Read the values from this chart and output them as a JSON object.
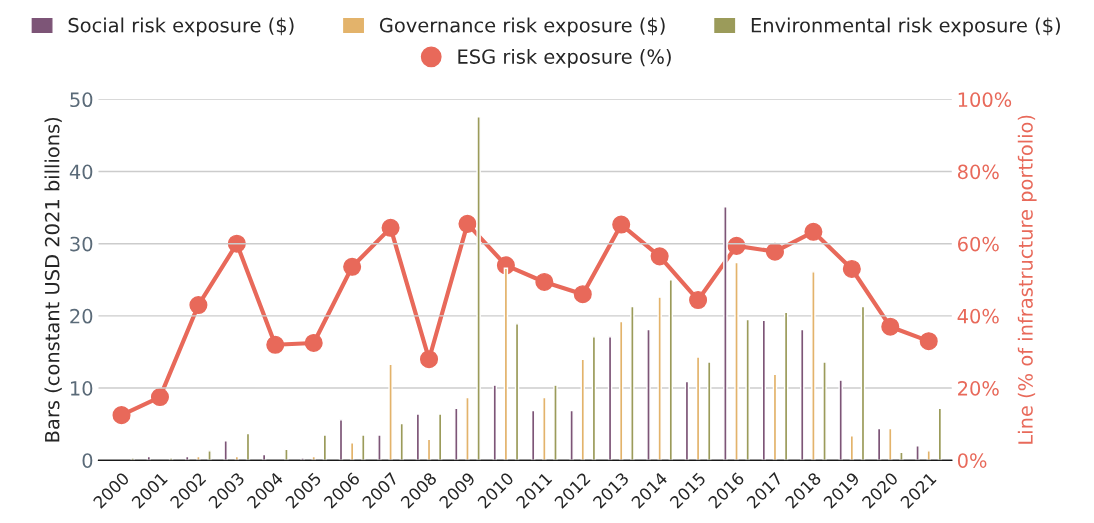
{
  "chart_data": {
    "type": "bar",
    "categories": [
      "2000",
      "2001",
      "2002",
      "2003",
      "2004",
      "2005",
      "2006",
      "2007",
      "2008",
      "2009",
      "2010",
      "2011",
      "2012",
      "2013",
      "2014",
      "2015",
      "2016",
      "2017",
      "2018",
      "2019",
      "2020",
      "2021"
    ],
    "series": [
      {
        "name": "Social risk exposure ($)",
        "color": "#7d5577",
        "values": [
          null,
          0.5,
          0.5,
          2.7,
          0.8,
          0.3,
          5.6,
          3.5,
          6.4,
          7.2,
          10.4,
          6.9,
          6.9,
          17.1,
          18.1,
          10.9,
          35.1,
          19.4,
          18.1,
          11.1,
          4.4,
          2.0
        ]
      },
      {
        "name": "Governance risk exposure ($)",
        "color": "#e3b36b",
        "values": [
          null,
          null,
          0.5,
          0.5,
          null,
          0.5,
          2.4,
          13.3,
          2.9,
          8.7,
          26.6,
          8.7,
          14.0,
          19.2,
          22.6,
          14.3,
          27.4,
          11.9,
          26.1,
          3.4,
          4.4,
          1.3
        ]
      },
      {
        "name": "Environmental risk exposure ($)",
        "color": "#9b9b5a",
        "values": [
          0.3,
          0.3,
          1.3,
          3.7,
          1.5,
          3.5,
          3.5,
          5.1,
          6.4,
          47.6,
          18.9,
          10.4,
          17.1,
          21.3,
          25.0,
          13.6,
          19.5,
          20.5,
          13.6,
          21.3,
          1.1,
          7.2
        ]
      },
      {
        "name": "ESG risk exposure (%)",
        "type": "line",
        "axis": "y2",
        "color": "#e8695a",
        "values": [
          12.5,
          17.5,
          43,
          60,
          32,
          32.5,
          53.6,
          64.4,
          28,
          65.5,
          54,
          49.4,
          46,
          65.3,
          56.5,
          44.4,
          59.4,
          57.8,
          63.3,
          53,
          37,
          33
        ]
      }
    ],
    "ylabel": "Bars (constant USD 2021 billions)",
    "y2label": "Line (% of infrastructure portfolio)",
    "ylim": [
      0,
      50
    ],
    "yticks": [
      0,
      10,
      20,
      30,
      40,
      50
    ],
    "y2lim": [
      0,
      100
    ],
    "y2ticks": [
      {
        "value": 0,
        "label": "0%"
      },
      {
        "value": 20,
        "label": "20%"
      },
      {
        "value": 40,
        "label": "40%"
      },
      {
        "value": 60,
        "label": "60%"
      },
      {
        "value": 80,
        "label": "80%"
      },
      {
        "value": 100,
        "label": "100%"
      }
    ],
    "grid": "y",
    "legend": "top",
    "marker": "circle"
  }
}
